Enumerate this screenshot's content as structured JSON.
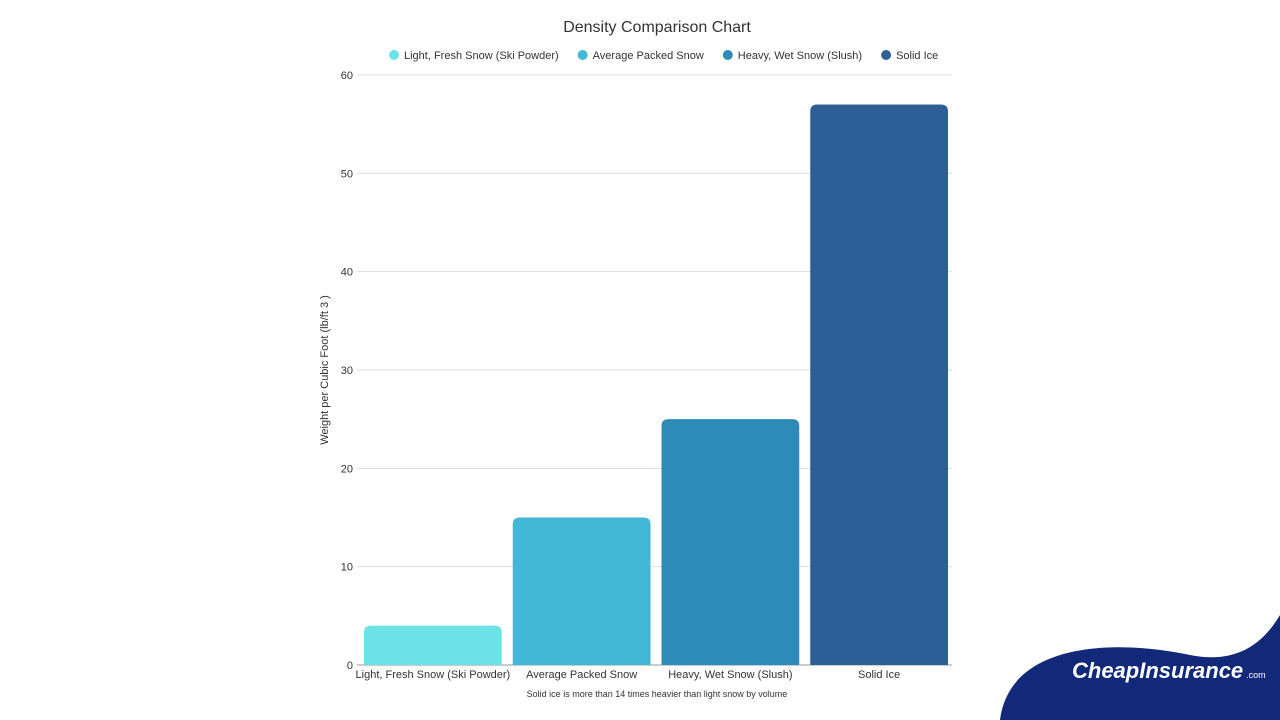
{
  "chart_data": {
    "type": "bar",
    "title": "Density Comparison Chart",
    "xlabel": "",
    "ylabel": "Weight per Cubic Foot (lb/ft 3 )",
    "caption": "Solid ice is more than 14 times heavier than light snow by volume",
    "categories": [
      "Light, Fresh Snow (Ski Powder)",
      "Average Packed Snow",
      "Heavy, Wet Snow (Slush)",
      "Solid Ice"
    ],
    "values": [
      4,
      15,
      25,
      57
    ],
    "colors": [
      "#6ee3e7",
      "#42b7d6",
      "#2e8bb8",
      "#2d5f96"
    ],
    "legend": [
      "Light, Fresh Snow (Ski Powder)",
      "Average Packed Snow",
      "Heavy, Wet Snow (Slush)",
      "Solid Ice"
    ],
    "legend_position": "top",
    "ylim": [
      0,
      60
    ],
    "yticks": [
      0,
      10,
      20,
      30,
      40,
      50,
      60
    ],
    "grid": true
  },
  "logo": {
    "text": "CheapInsurance.com",
    "color": "#12297a"
  }
}
